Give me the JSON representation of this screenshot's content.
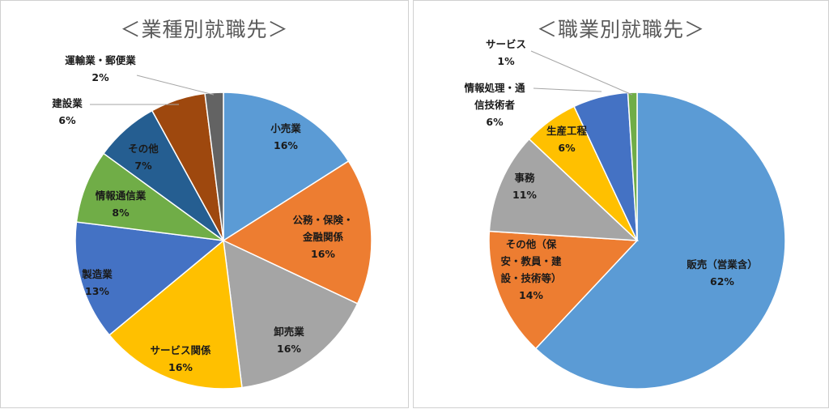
{
  "chart_data": [
    {
      "type": "pie",
      "title": "＜業種別就職先＞",
      "slices": [
        {
          "label": [
            "小売業"
          ],
          "pct_label": "16%",
          "value": 16,
          "color": "#5b9bd5"
        },
        {
          "label": [
            "公務・保険・",
            "金融関係"
          ],
          "pct_label": "16%",
          "value": 16,
          "color": "#ed7d31"
        },
        {
          "label": [
            "卸売業"
          ],
          "pct_label": "16%",
          "value": 16,
          "color": "#a5a5a5"
        },
        {
          "label": [
            "サービス関係"
          ],
          "pct_label": "16%",
          "value": 16,
          "color": "#ffc000"
        },
        {
          "label": [
            "製造業"
          ],
          "pct_label": "13%",
          "value": 13,
          "color": "#4472c4"
        },
        {
          "label": [
            "情報通信業"
          ],
          "pct_label": "8%",
          "value": 8,
          "color": "#70ad47"
        },
        {
          "label": [
            "その他"
          ],
          "pct_label": "7%",
          "value": 7,
          "color": "#255e91"
        },
        {
          "label": [
            "建設業"
          ],
          "pct_label": "6%",
          "value": 6,
          "color": "#9e480e"
        },
        {
          "label": [
            "運輸業・郵便業"
          ],
          "pct_label": "2%",
          "value": 2,
          "color": "#636363"
        }
      ]
    },
    {
      "type": "pie",
      "title": "＜職業別就職先＞",
      "slices": [
        {
          "label": [
            "販売（営業含）"
          ],
          "pct_label": "62%",
          "value": 62,
          "color": "#5b9bd5"
        },
        {
          "label": [
            "その他（保",
            "安・教員・建",
            "設・技術等）"
          ],
          "pct_label": "14%",
          "value": 14,
          "color": "#ed7d31"
        },
        {
          "label": [
            "事務"
          ],
          "pct_label": "11%",
          "value": 11,
          "color": "#a5a5a5"
        },
        {
          "label": [
            "生産工程"
          ],
          "pct_label": "6%",
          "value": 6,
          "color": "#ffc000"
        },
        {
          "label": [
            "情報処理・通",
            "信技術者"
          ],
          "pct_label": "6%",
          "value": 6,
          "color": "#4472c4"
        },
        {
          "label": [
            "サービス"
          ],
          "pct_label": "1%",
          "value": 1,
          "color": "#70ad47"
        }
      ]
    }
  ]
}
